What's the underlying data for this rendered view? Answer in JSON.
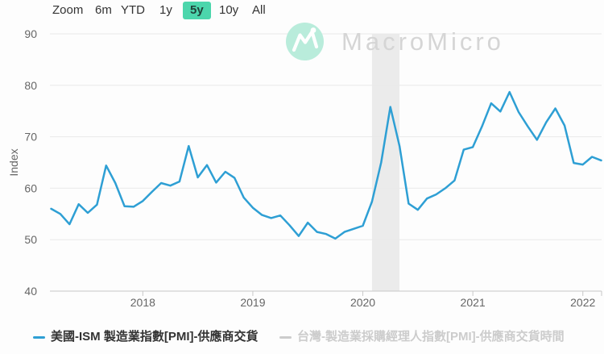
{
  "toolbar": {
    "zoom_label": "Zoom",
    "active_color": "#4cd6ac",
    "buttons": [
      {
        "label": "6m",
        "active": false
      },
      {
        "label": "YTD",
        "active": false
      },
      {
        "label": "1y",
        "active": false
      },
      {
        "label": "5y",
        "active": true
      },
      {
        "label": "10y",
        "active": false
      },
      {
        "label": "All",
        "active": false
      }
    ]
  },
  "watermark": {
    "brand": "MacroMicro"
  },
  "chart_data": {
    "type": "line",
    "title": "",
    "ylabel": "Index",
    "ylim": [
      40,
      90
    ],
    "yticks": [
      90,
      80,
      70,
      60,
      50,
      40
    ],
    "xticks": [
      "2018",
      "2019",
      "2020",
      "2021",
      "2022"
    ],
    "grid": true,
    "frequency": "monthly",
    "start_month": "2017-03",
    "end_month": "2022-03",
    "recession_band": {
      "from": "2020-02",
      "to": "2020-05",
      "color": "#ebebeb"
    },
    "series": [
      {
        "name": "美國-ISM 製造業指數[PMI]-供應商交貨",
        "color": "#2e9fd4",
        "visible": true,
        "values": [
          56.0,
          55.0,
          53.0,
          56.9,
          55.2,
          56.8,
          64.4,
          61.0,
          56.5,
          56.4,
          57.5,
          59.3,
          61.0,
          60.5,
          61.3,
          68.2,
          62.1,
          64.5,
          61.1,
          63.2,
          62.0,
          58.2,
          56.2,
          54.8,
          54.2,
          54.7,
          52.8,
          50.7,
          53.3,
          51.5,
          51.1,
          50.2,
          51.5,
          52.1,
          52.7,
          57.4,
          65.0,
          75.8,
          68.2,
          57.0,
          55.8,
          58.0,
          58.8,
          60.0,
          61.5,
          67.5,
          68.0,
          72.0,
          76.5,
          74.9,
          78.7,
          74.8,
          72.0,
          69.4,
          72.8,
          75.5,
          72.2,
          64.9,
          64.6,
          66.1,
          65.4
        ]
      },
      {
        "name": "台灣-製造業採購經理人指數[PMI]-供應商交貨時間",
        "color": "#cccccc",
        "visible": false,
        "values": []
      }
    ]
  },
  "legend": [
    {
      "label": "美國-ISM 製造業指數[PMI]-供應商交貨",
      "color": "#2e9fd4",
      "text_color": "#333333",
      "active": true
    },
    {
      "label": "台灣-製造業採購經理人指數[PMI]-供應商交貨時間",
      "color": "#cccccc",
      "text_color": "#cccccc",
      "active": false
    }
  ]
}
